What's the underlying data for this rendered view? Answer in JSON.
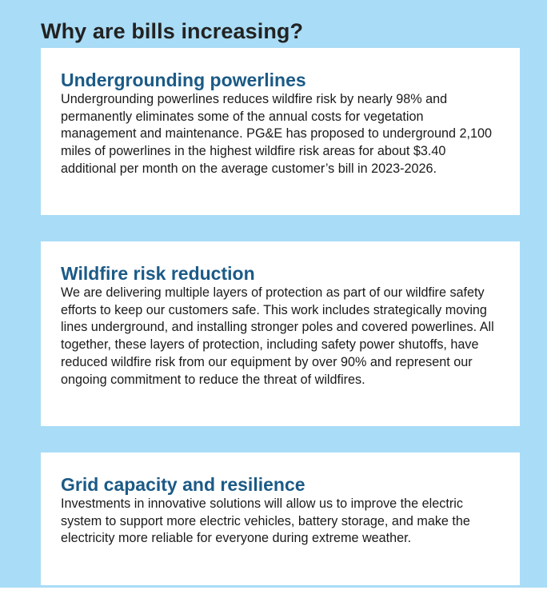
{
  "page": {
    "heading": "Why are bills increasing?"
  },
  "cards": [
    {
      "title": "Undergrounding powerlines",
      "body": "Undergrounding powerlines reduces wildfire risk by nearly 98% and permanently eliminates some of the annual costs for vegetation management and maintenance. PG&E has proposed to underground 2,100 miles of powerlines in the highest wildfire risk areas for about $3.40 additional per month on the average customer’s bill in 2023-2026."
    },
    {
      "title": "Wildfire risk reduction",
      "body": "We are delivering multiple layers of protection as part of our wildfire safety efforts to keep our customers safe. This work includes strategically moving lines underground, and installing stronger poles and covered powerlines. All together, these layers of protection, including safety power shutoffs, have reduced wildfire risk from our equipment by over 90% and represent our ongoing commitment to reduce the threat of wildfires."
    },
    {
      "title": "Grid capacity and resilience",
      "body": "Investments in innovative solutions will allow us to improve the electric system to support more electric vehicles, battery storage, and make the electricity more reliable for everyone during extreme weather."
    }
  ],
  "colors": {
    "panel_background": "#a9dcf6",
    "card_background": "#ffffff",
    "card_title": "#1b5a86",
    "heading_text": "#222222"
  }
}
